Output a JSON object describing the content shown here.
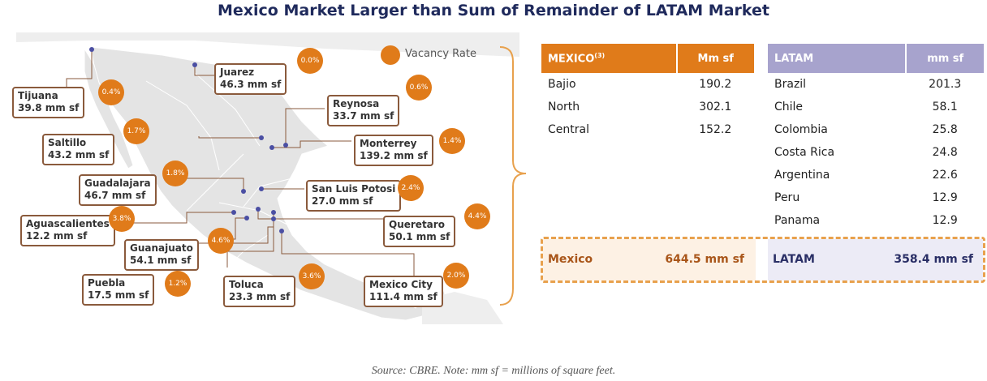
{
  "title": "Mexico Market Larger than Sum of Remainder of LATAM Market",
  "legend": {
    "label": "Vacancy Rate"
  },
  "colors": {
    "accent": "#e07b1a",
    "callout_border": "#8a5a3c",
    "latam_header": "#a7a3cd",
    "title": "#1f2a5c"
  },
  "markets": [
    {
      "id": "tijuana",
      "name": "Tijuana",
      "size": "39.8 mm sf",
      "vacancy": "0.4%"
    },
    {
      "id": "juarez",
      "name": "Juarez",
      "size": "46.3 mm sf",
      "vacancy": "0.0%"
    },
    {
      "id": "reynosa",
      "name": "Reynosa",
      "size": "33.7 mm sf",
      "vacancy": "0.6%"
    },
    {
      "id": "saltillo",
      "name": "Saltillo",
      "size": "43.2 mm sf",
      "vacancy": "1.7%"
    },
    {
      "id": "monterrey",
      "name": "Monterrey",
      "size": "139.2 mm sf",
      "vacancy": "1.4%"
    },
    {
      "id": "guadalajara",
      "name": "Guadalajara",
      "size": "46.7 mm sf",
      "vacancy": "1.8%"
    },
    {
      "id": "san-luis-potosi",
      "name": "San Luis Potosi",
      "size": "27.0 mm sf",
      "vacancy": "2.4%"
    },
    {
      "id": "aguascalientes",
      "name": "Aguascalientes",
      "size": "12.2 mm sf",
      "vacancy": "3.8%"
    },
    {
      "id": "queretaro",
      "name": "Queretaro",
      "size": "50.1 mm sf",
      "vacancy": "4.4%"
    },
    {
      "id": "guanajuato",
      "name": "Guanajuato",
      "size": "54.1 mm sf",
      "vacancy": "4.6%"
    },
    {
      "id": "puebla",
      "name": "Puebla",
      "size": "17.5 mm sf",
      "vacancy": "1.2%"
    },
    {
      "id": "toluca",
      "name": "Toluca",
      "size": "23.3 mm sf",
      "vacancy": "3.6%"
    },
    {
      "id": "mexico-city",
      "name": "Mexico City",
      "size": "111.4 mm sf",
      "vacancy": "2.0%"
    }
  ],
  "mexico_table": {
    "header": {
      "region": "MEXICO",
      "superscript": "(3)",
      "unit": "Mm sf"
    },
    "rows": [
      {
        "region": "Bajio",
        "value": "190.2"
      },
      {
        "region": "North",
        "value": "302.1"
      },
      {
        "region": "Central",
        "value": "152.2"
      }
    ],
    "total": {
      "label": "Mexico",
      "value": "644.5 mm sf"
    }
  },
  "latam_table": {
    "header": {
      "region": "LATAM",
      "unit": "mm sf"
    },
    "rows": [
      {
        "country": "Brazil",
        "value": "201.3"
      },
      {
        "country": "Chile",
        "value": "58.1"
      },
      {
        "country": "Colombia",
        "value": "25.8"
      },
      {
        "country": "Costa Rica",
        "value": "24.8"
      },
      {
        "country": "Argentina",
        "value": "22.6"
      },
      {
        "country": "Peru",
        "value": "12.9"
      },
      {
        "country": "Panama",
        "value": "12.9"
      }
    ],
    "total": {
      "label": "LATAM",
      "value": "358.4 mm sf"
    }
  },
  "source": "Source: CBRE. Note: mm sf = millions of square feet."
}
